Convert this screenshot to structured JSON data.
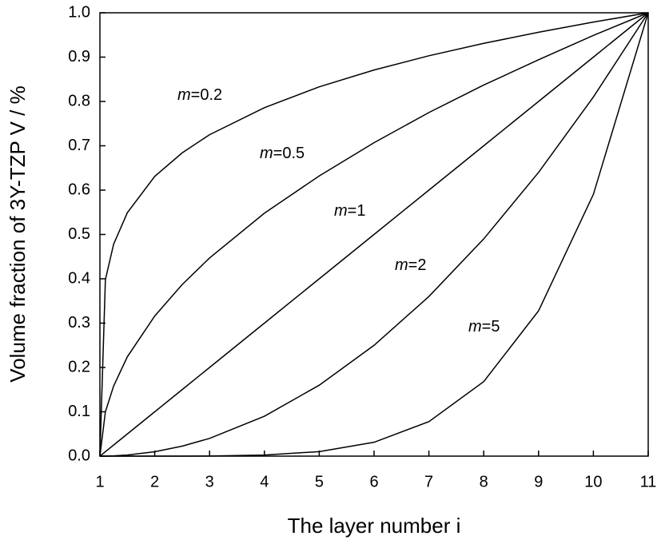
{
  "chart_data": {
    "type": "line",
    "xlabel": "The layer number i",
    "ylabel": "Volume fraction of 3Y-TZP V / %",
    "x": [
      1,
      1.1,
      1.25,
      1.5,
      2,
      2.5,
      3,
      4,
      5,
      6,
      7,
      8,
      9,
      10,
      11
    ],
    "series": [
      {
        "name": "m=0.2",
        "color": "#000000",
        "values": [
          0,
          0.398,
          0.478,
          0.549,
          0.631,
          0.684,
          0.725,
          0.786,
          0.833,
          0.871,
          0.903,
          0.931,
          0.956,
          0.979,
          1
        ]
      },
      {
        "name": "m=0.5",
        "color": "#000000",
        "values": [
          0,
          0.1,
          0.158,
          0.224,
          0.316,
          0.387,
          0.447,
          0.548,
          0.632,
          0.707,
          0.775,
          0.837,
          0.894,
          0.949,
          1
        ]
      },
      {
        "name": "m=1",
        "color": "#000000",
        "values": [
          0,
          0.01,
          0.025,
          0.05,
          0.1,
          0.15,
          0.2,
          0.3,
          0.4,
          0.5,
          0.6,
          0.7,
          0.8,
          0.9,
          1
        ]
      },
      {
        "name": "m=2",
        "color": "#000000",
        "values": [
          0,
          0.0001,
          0.000625,
          0.0025,
          0.01,
          0.0225,
          0.04,
          0.09,
          0.16,
          0.25,
          0.36,
          0.49,
          0.64,
          0.81,
          1
        ]
      },
      {
        "name": "m=5",
        "color": "#000000",
        "values": [
          0,
          0,
          0,
          0,
          1e-05,
          8e-05,
          0.00032,
          0.00243,
          0.01024,
          0.03125,
          0.07776,
          0.16807,
          0.32768,
          0.59049,
          1
        ]
      }
    ],
    "xlim": [
      1,
      11
    ],
    "xticks": [
      1,
      2,
      3,
      4,
      5,
      6,
      7,
      8,
      9,
      10,
      11
    ],
    "ylim": [
      0,
      1
    ],
    "yticks": [
      {
        "value": 0,
        "label": "0.0"
      },
      {
        "value": 0.1,
        "label": "0.1"
      },
      {
        "value": 0.2,
        "label": "0.2"
      },
      {
        "value": 0.3,
        "label": "0.3"
      },
      {
        "value": 0.4,
        "label": "0.4"
      },
      {
        "value": 0.5,
        "label": "0.5"
      },
      {
        "value": 0.6,
        "label": "0.6"
      },
      {
        "value": 0.7,
        "label": "0.7"
      },
      {
        "value": 0.8,
        "label": "0.8"
      },
      {
        "value": 0.9,
        "label": "0.9"
      },
      {
        "value": 1,
        "label": "1.0"
      }
    ],
    "grid": false
  }
}
